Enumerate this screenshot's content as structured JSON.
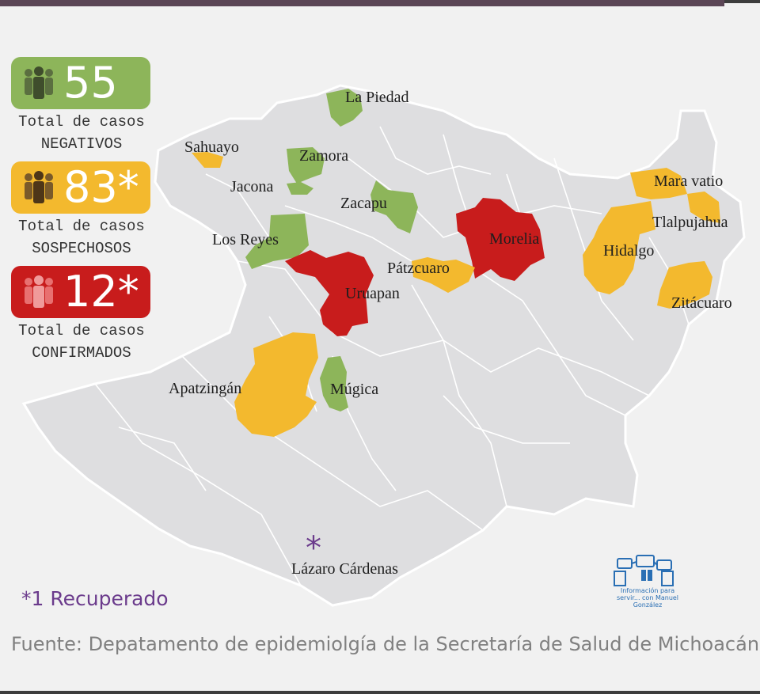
{
  "colors": {
    "negative": "#8db55a",
    "suspected": "#f3b92e",
    "confirmed": "#c81c1c",
    "state_fill": "#dedee0",
    "state_border": "#ffffff",
    "accent": "#6b3b8c"
  },
  "stats": [
    {
      "key": "negative",
      "value": "55",
      "line1": "Total de casos",
      "line2": "NEGATIVOS",
      "color": "#8db55a",
      "icon": "people-icon"
    },
    {
      "key": "suspected",
      "value": "83*",
      "line1": "Total de casos",
      "line2": "SOSPECHOSOS",
      "color": "#f3b92e",
      "icon": "people-icon"
    },
    {
      "key": "confirmed",
      "value": "12*",
      "line1": "Total de casos",
      "line2": "CONFIRMADOS",
      "color": "#c81c1c",
      "icon": "people-icon"
    }
  ],
  "municipalities": [
    {
      "name": "La Piedad",
      "status": "negative"
    },
    {
      "name": "Sahuayo",
      "status": "suspected"
    },
    {
      "name": "Zamora",
      "status": "negative"
    },
    {
      "name": "Jacona",
      "status": "negative"
    },
    {
      "name": "Zacapu",
      "status": "negative"
    },
    {
      "name": "Los Reyes",
      "status": "negative"
    },
    {
      "name": "Uruapan",
      "status": "confirmed"
    },
    {
      "name": "Morelia",
      "status": "confirmed"
    },
    {
      "name": "Pátzcuaro",
      "status": "suspected"
    },
    {
      "name": "Mara vatio",
      "status": "suspected"
    },
    {
      "name": "Tlalpujahua",
      "status": "suspected"
    },
    {
      "name": "Hidalgo",
      "status": "suspected"
    },
    {
      "name": "Zitácuaro",
      "status": "suspected"
    },
    {
      "name": "Apatzingán",
      "status": "suspected"
    },
    {
      "name": "Múgica",
      "status": "negative"
    },
    {
      "name": "Lázaro Cárdenas",
      "status": "recovered"
    }
  ],
  "recovered_marker": "*",
  "footnote": "*1 Recuperado",
  "source": "Fuente: Depatamento de epidemiolgía de la Secretaría de Salud de Michoacán",
  "watermark": {
    "text": "Información para servir... con Manuel González",
    "icon": "hands-logo-icon"
  }
}
